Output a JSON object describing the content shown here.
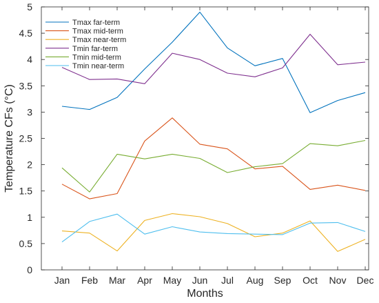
{
  "chart_data": {
    "type": "line",
    "categories": [
      "Jan",
      "Feb",
      "Mar",
      "Apr",
      "May",
      "Jun",
      "Jul",
      "Aug",
      "Sep",
      "Oct",
      "Nov",
      "Dec"
    ],
    "xlabel": "Months",
    "ylabel": "Temperature CFs (°C)",
    "ylim": [
      0,
      5
    ],
    "yticks": [
      0,
      0.5,
      1,
      1.5,
      2,
      2.5,
      3,
      3.5,
      4,
      4.5,
      5
    ],
    "grid": false,
    "legend_position": "top-left",
    "series": [
      {
        "name": "Tmax far-term",
        "color": "#0072BD",
        "values": [
          3.11,
          3.05,
          3.28,
          3.82,
          4.33,
          4.9,
          4.22,
          3.88,
          4.02,
          2.99,
          3.22,
          3.37
        ]
      },
      {
        "name": "Tmax mid-term",
        "color": "#D95319",
        "values": [
          1.63,
          1.35,
          1.45,
          2.45,
          2.89,
          2.39,
          2.3,
          1.92,
          1.97,
          1.53,
          1.61,
          1.51
        ]
      },
      {
        "name": "Tmax near-term",
        "color": "#EDB120",
        "values": [
          0.74,
          0.7,
          0.36,
          0.94,
          1.07,
          1.01,
          0.88,
          0.63,
          0.7,
          0.93,
          0.35,
          0.58
        ]
      },
      {
        "name": "Tmin far-term",
        "color": "#7E2F8E",
        "values": [
          3.85,
          3.62,
          3.63,
          3.54,
          4.12,
          4.0,
          3.74,
          3.67,
          3.84,
          4.48,
          3.9,
          3.95
        ]
      },
      {
        "name": "Tmin mid-term",
        "color": "#77AC30",
        "values": [
          1.94,
          1.48,
          2.2,
          2.11,
          2.2,
          2.12,
          1.85,
          1.96,
          2.02,
          2.4,
          2.36,
          2.46
        ]
      },
      {
        "name": "Tmin near-term",
        "color": "#4DBEEE",
        "values": [
          0.53,
          0.92,
          1.06,
          0.68,
          0.82,
          0.72,
          0.69,
          0.68,
          0.67,
          0.89,
          0.9,
          0.73
        ]
      }
    ]
  }
}
